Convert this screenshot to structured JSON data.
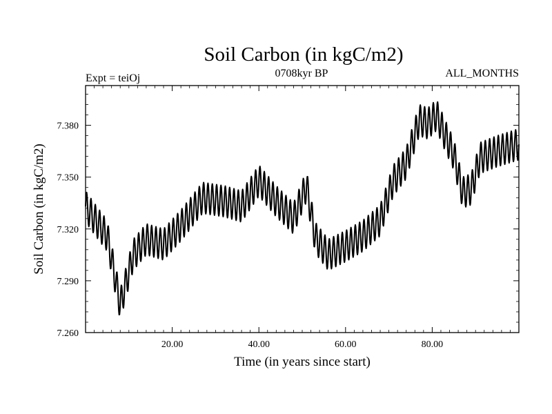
{
  "chart_data": {
    "type": "line",
    "title": "Soil Carbon (in kgC/m2)",
    "subtitle_left": "Expt = teiOj",
    "subtitle_center": "0708kyr BP",
    "subtitle_right": "ALL_MONTHS",
    "xlabel": "Time (in years since start)",
    "ylabel": "Soil Carbon (in kgC/m2)",
    "xlim": [
      0,
      100
    ],
    "ylim": [
      7.26,
      7.403
    ],
    "xticks": [
      20,
      40,
      60,
      80
    ],
    "xtick_labels": [
      "20.00",
      "40.00",
      "60.00",
      "80.00"
    ],
    "yticks": [
      7.26,
      7.29,
      7.32,
      7.35,
      7.38
    ],
    "ytick_labels": [
      "7.260",
      "7.290",
      "7.320",
      "7.350",
      "7.380"
    ],
    "grid": false,
    "series": [
      {
        "name": "Soil Carbon",
        "color": "#000000",
        "seasonal_amplitude": 0.009,
        "trend_x": [
          0,
          2,
          5,
          8,
          11,
          14,
          18,
          22,
          27,
          32,
          36,
          40,
          44,
          48,
          51,
          53,
          56,
          60,
          64,
          68,
          71,
          74,
          77,
          79,
          81,
          83,
          85,
          87,
          89,
          91,
          95,
          100
        ],
        "trend_y": [
          7.333,
          7.326,
          7.316,
          7.276,
          7.305,
          7.314,
          7.311,
          7.322,
          7.338,
          7.336,
          7.333,
          7.348,
          7.336,
          7.326,
          7.345,
          7.315,
          7.305,
          7.31,
          7.316,
          7.325,
          7.348,
          7.358,
          7.383,
          7.381,
          7.386,
          7.374,
          7.363,
          7.341,
          7.343,
          7.361,
          7.365,
          7.369
        ]
      }
    ]
  }
}
